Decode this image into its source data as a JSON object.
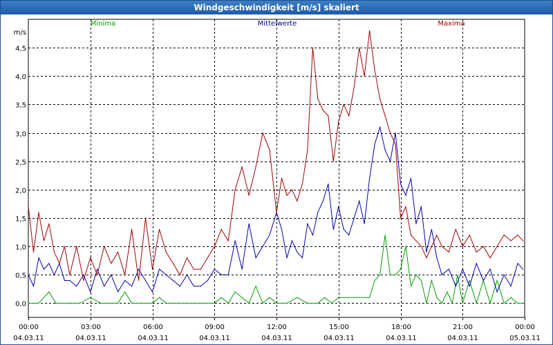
{
  "window": {
    "title": "Windgeschwindigkeit [m/s] skaliert"
  },
  "chart_data": {
    "type": "line",
    "title": "Windgeschwindigkeit [m/s] skaliert",
    "ylabel": "m/s",
    "xlabel": "",
    "ylim": [
      -0.25,
      5.0
    ],
    "yticks": [
      0.0,
      0.5,
      1.0,
      1.5,
      2.0,
      2.5,
      3.0,
      3.5,
      4.0,
      4.5
    ],
    "ytick_labels": [
      "0,0",
      "0,5",
      "1,0",
      "1,5",
      "2,0",
      "2,5",
      "3,0",
      "3,5",
      "4,0",
      "4,5"
    ],
    "xlim": [
      "04.03.11 00:00",
      "05.03.11 00:00"
    ],
    "xticks": [
      {
        "time": "00:00",
        "date": "04.03.11"
      },
      {
        "time": "03:00",
        "date": "04.03.11"
      },
      {
        "time": "06:00",
        "date": "04.03.11"
      },
      {
        "time": "09:00",
        "date": "04.03.11"
      },
      {
        "time": "12:00",
        "date": "04.03.11"
      },
      {
        "time": "15:00",
        "date": "04.03.11"
      },
      {
        "time": "18:00",
        "date": "04.03.11"
      },
      {
        "time": "21:00",
        "date": "04.03.11"
      },
      {
        "time": "00:00",
        "date": "05.03.11"
      }
    ],
    "grid": true,
    "legend": "top",
    "series": [
      {
        "name": "Minima",
        "color": "#00a000",
        "x": [
          "00:00",
          "00:30",
          "01:00",
          "01:20",
          "01:40",
          "02:00",
          "02:30",
          "03:00",
          "03:30",
          "04:00",
          "04:20",
          "04:40",
          "05:00",
          "05:30",
          "06:00",
          "06:20",
          "06:40",
          "07:00",
          "07:30",
          "08:00",
          "08:30",
          "09:00",
          "09:20",
          "09:40",
          "10:00",
          "10:20",
          "10:40",
          "11:00",
          "11:20",
          "11:40",
          "12:00",
          "12:30",
          "13:00",
          "13:30",
          "14:00",
          "14:20",
          "14:40",
          "15:00",
          "15:30",
          "16:00",
          "16:30",
          "16:45",
          "17:00",
          "17:15",
          "17:30",
          "17:45",
          "18:00",
          "18:15",
          "18:30",
          "18:45",
          "19:00",
          "19:15",
          "19:30",
          "19:45",
          "20:00",
          "20:15",
          "20:30",
          "20:45",
          "21:00",
          "21:20",
          "21:40",
          "22:00",
          "22:20",
          "22:40",
          "23:00",
          "23:20",
          "23:40",
          "23:55"
        ],
        "y": [
          0.0,
          0.0,
          0.2,
          0.0,
          0.0,
          0.0,
          0.0,
          0.1,
          0.0,
          0.0,
          0.0,
          0.2,
          0.0,
          0.0,
          0.0,
          0.1,
          0.0,
          0.0,
          0.0,
          0.0,
          0.0,
          0.0,
          0.1,
          0.0,
          0.2,
          0.1,
          0.0,
          0.3,
          0.0,
          0.1,
          0.0,
          0.0,
          0.1,
          0.0,
          0.0,
          0.1,
          0.0,
          0.1,
          0.1,
          0.1,
          0.1,
          0.4,
          0.5,
          1.2,
          0.5,
          0.5,
          0.6,
          1.0,
          0.3,
          0.5,
          0.4,
          0.0,
          0.4,
          0.1,
          0.0,
          0.2,
          0.0,
          0.5,
          0.0,
          0.4,
          0.0,
          0.4,
          0.0,
          0.4,
          0.0,
          0.1,
          0.0,
          0.0
        ]
      },
      {
        "name": "Mittelwerte",
        "color": "#0000b0",
        "x": [
          "00:00",
          "00:15",
          "00:30",
          "00:45",
          "01:00",
          "01:15",
          "01:30",
          "01:45",
          "02:00",
          "02:20",
          "02:40",
          "03:00",
          "03:20",
          "03:40",
          "04:00",
          "04:20",
          "04:40",
          "05:00",
          "05:20",
          "05:40",
          "06:00",
          "06:20",
          "06:40",
          "07:00",
          "07:20",
          "07:40",
          "08:00",
          "08:20",
          "08:40",
          "09:00",
          "09:20",
          "09:40",
          "10:00",
          "10:20",
          "10:40",
          "11:00",
          "11:20",
          "11:40",
          "12:00",
          "12:15",
          "12:30",
          "12:45",
          "13:00",
          "13:15",
          "13:30",
          "13:45",
          "14:00",
          "14:15",
          "14:30",
          "14:45",
          "15:00",
          "15:15",
          "15:30",
          "15:45",
          "16:00",
          "16:15",
          "16:30",
          "16:45",
          "17:00",
          "17:15",
          "17:30",
          "17:45",
          "18:00",
          "18:15",
          "18:30",
          "18:45",
          "19:00",
          "19:15",
          "19:30",
          "19:45",
          "20:00",
          "20:20",
          "20:40",
          "21:00",
          "21:20",
          "21:40",
          "22:00",
          "22:20",
          "22:40",
          "23:00",
          "23:20",
          "23:40",
          "23:55"
        ],
        "y": [
          0.5,
          0.3,
          0.8,
          0.6,
          0.7,
          0.5,
          0.7,
          0.4,
          0.4,
          0.3,
          0.5,
          0.2,
          0.6,
          0.3,
          0.5,
          0.2,
          0.4,
          0.3,
          0.6,
          0.4,
          0.2,
          0.6,
          0.5,
          0.4,
          0.3,
          0.5,
          0.3,
          0.3,
          0.4,
          0.6,
          0.5,
          0.5,
          1.1,
          0.6,
          1.4,
          0.8,
          1.0,
          1.2,
          1.6,
          1.3,
          0.8,
          1.1,
          0.9,
          0.8,
          1.4,
          1.2,
          1.6,
          1.8,
          2.1,
          1.3,
          1.7,
          1.3,
          1.2,
          1.5,
          1.8,
          1.4,
          2.2,
          2.8,
          3.1,
          2.7,
          2.5,
          3.0,
          2.1,
          1.9,
          2.2,
          1.4,
          1.7,
          0.9,
          1.3,
          0.8,
          0.5,
          0.6,
          0.3,
          0.6,
          0.3,
          0.7,
          0.4,
          0.6,
          0.2,
          0.5,
          0.3,
          0.7,
          0.6
        ]
      },
      {
        "name": "Maxima",
        "color": "#a00000",
        "x": [
          "00:00",
          "00:15",
          "00:30",
          "00:45",
          "01:00",
          "01:15",
          "01:30",
          "01:45",
          "02:00",
          "02:20",
          "02:40",
          "03:00",
          "03:20",
          "03:40",
          "04:00",
          "04:20",
          "04:40",
          "05:00",
          "05:20",
          "05:40",
          "06:00",
          "06:20",
          "06:40",
          "07:00",
          "07:20",
          "07:40",
          "08:00",
          "08:20",
          "08:40",
          "09:00",
          "09:20",
          "09:40",
          "10:00",
          "10:20",
          "10:40",
          "11:00",
          "11:20",
          "11:40",
          "12:00",
          "12:15",
          "12:30",
          "12:45",
          "13:00",
          "13:15",
          "13:30",
          "13:45",
          "14:00",
          "14:15",
          "14:30",
          "14:45",
          "15:00",
          "15:15",
          "15:30",
          "15:45",
          "16:00",
          "16:15",
          "16:30",
          "16:45",
          "17:00",
          "17:15",
          "17:30",
          "17:45",
          "18:00",
          "18:15",
          "18:30",
          "18:45",
          "19:00",
          "19:15",
          "19:30",
          "19:45",
          "20:00",
          "20:20",
          "20:40",
          "21:00",
          "21:20",
          "21:40",
          "22:00",
          "22:20",
          "22:40",
          "23:00",
          "23:20",
          "23:40",
          "23:55"
        ],
        "y": [
          1.7,
          0.9,
          1.6,
          1.1,
          1.4,
          0.9,
          0.7,
          1.0,
          0.5,
          1.0,
          0.4,
          0.8,
          0.5,
          1.0,
          0.7,
          0.9,
          0.5,
          1.3,
          0.4,
          1.5,
          0.6,
          1.3,
          0.9,
          0.7,
          0.5,
          0.8,
          0.6,
          0.6,
          0.8,
          1.0,
          1.3,
          1.1,
          2.0,
          2.4,
          1.9,
          2.4,
          3.0,
          2.7,
          1.6,
          2.2,
          1.9,
          2.0,
          1.8,
          2.1,
          2.7,
          4.5,
          3.6,
          3.4,
          3.3,
          2.5,
          3.2,
          3.5,
          3.3,
          3.8,
          4.5,
          4.0,
          4.8,
          4.1,
          3.6,
          3.3,
          3.0,
          2.8,
          1.5,
          1.7,
          1.2,
          1.1,
          1.0,
          0.8,
          1.0,
          1.2,
          1.0,
          0.9,
          1.3,
          1.0,
          1.2,
          0.9,
          1.0,
          0.8,
          1.0,
          1.2,
          1.1,
          1.2,
          1.1
        ]
      }
    ]
  }
}
